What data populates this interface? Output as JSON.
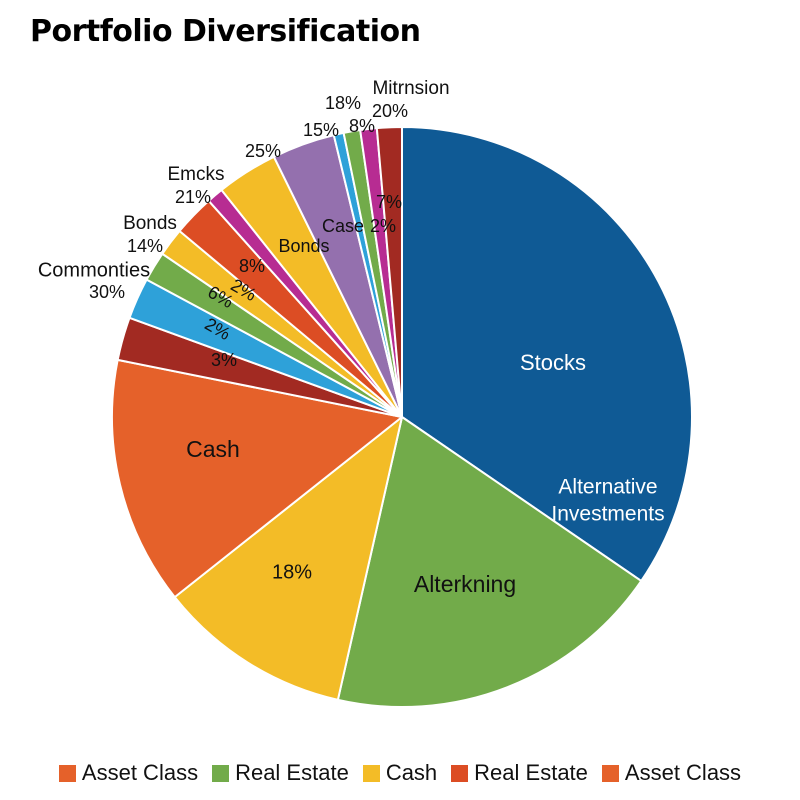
{
  "colors": {
    "blue": "#0f5a95",
    "green": "#72ab4a",
    "yellow": "#f3bc27",
    "orange": "#e5612a",
    "dark_red": "#a22a22",
    "light_blue": "#2ea1d9",
    "red_orange": "#dc4d24",
    "magenta": "#b72c92",
    "purple": "#9470ae"
  },
  "chart_data": {
    "type": "pie",
    "title": "Portfolio Diversification",
    "slices": [
      {
        "value": 37.5,
        "color": "#0f5a95"
      },
      {
        "value": 20.6,
        "color": "#72ab4a"
      },
      {
        "value": 11.7,
        "color": "#f3bc27"
      },
      {
        "value": 15.0,
        "color": "#e5612a"
      },
      {
        "value": 2.6,
        "color": "#a22a22"
      },
      {
        "value": 2.5,
        "color": "#2ea1d9"
      },
      {
        "value": 1.8,
        "color": "#72ab4a"
      },
      {
        "value": 1.7,
        "color": "#f3bc27"
      },
      {
        "value": 2.5,
        "color": "#dc4d24"
      },
      {
        "value": 1.0,
        "color": "#b72c92"
      },
      {
        "value": 3.7,
        "color": "#f3bc27"
      },
      {
        "value": 3.8,
        "color": "#9470ae"
      },
      {
        "value": 0.6,
        "color": "#2ea1d9"
      },
      {
        "value": 1.0,
        "color": "#72ab4a"
      },
      {
        "value": 1.0,
        "color": "#b72c92"
      },
      {
        "value": 1.5,
        "color": "#a22a22"
      }
    ],
    "labels": [
      {
        "text": "Stocks",
        "color": "#ffffff"
      },
      {
        "text": "Alternative",
        "color": "#ffffff"
      },
      {
        "text": "Investments",
        "color": "#ffffff"
      },
      {
        "text": "Alterkning",
        "color": "#111111"
      },
      {
        "text": "18%",
        "color": "#111111"
      },
      {
        "text": "Cash",
        "color": "#111111"
      },
      {
        "text": "3%",
        "color": "#111111"
      },
      {
        "text": "2%",
        "color": "#111111"
      },
      {
        "text": "6%",
        "color": "#111111"
      },
      {
        "text": "2%",
        "color": "#111111"
      },
      {
        "text": "8%",
        "color": "#111111"
      },
      {
        "text": "Bonds",
        "color": "#111111"
      },
      {
        "text": "Case",
        "color": "#111111"
      },
      {
        "text": "2%",
        "color": "#111111"
      },
      {
        "text": "7%",
        "color": "#111111"
      },
      {
        "text": "Commonties",
        "color": "#111111"
      },
      {
        "text": "30%",
        "color": "#111111"
      },
      {
        "text": "Bonds",
        "color": "#111111"
      },
      {
        "text": "14%",
        "color": "#111111"
      },
      {
        "text": "Emcks",
        "color": "#111111"
      },
      {
        "text": "21%",
        "color": "#111111"
      },
      {
        "text": "25%",
        "color": "#111111"
      },
      {
        "text": "15%",
        "color": "#111111"
      },
      {
        "text": "8%",
        "color": "#111111"
      },
      {
        "text": "18%",
        "color": "#111111"
      },
      {
        "text": "Mitrnsion",
        "color": "#111111"
      },
      {
        "text": "20%",
        "color": "#111111"
      }
    ],
    "legend": [
      {
        "label": "Asset Class",
        "color": "#e5612a"
      },
      {
        "label": "Real Estate",
        "color": "#72ab4a"
      },
      {
        "label": "Cash",
        "color": "#f3bc27"
      },
      {
        "label": "Real Estate",
        "color": "#dc4d24"
      },
      {
        "label": "Asset Class",
        "color": "#e5612a"
      }
    ],
    "legend_position": "bottom"
  }
}
